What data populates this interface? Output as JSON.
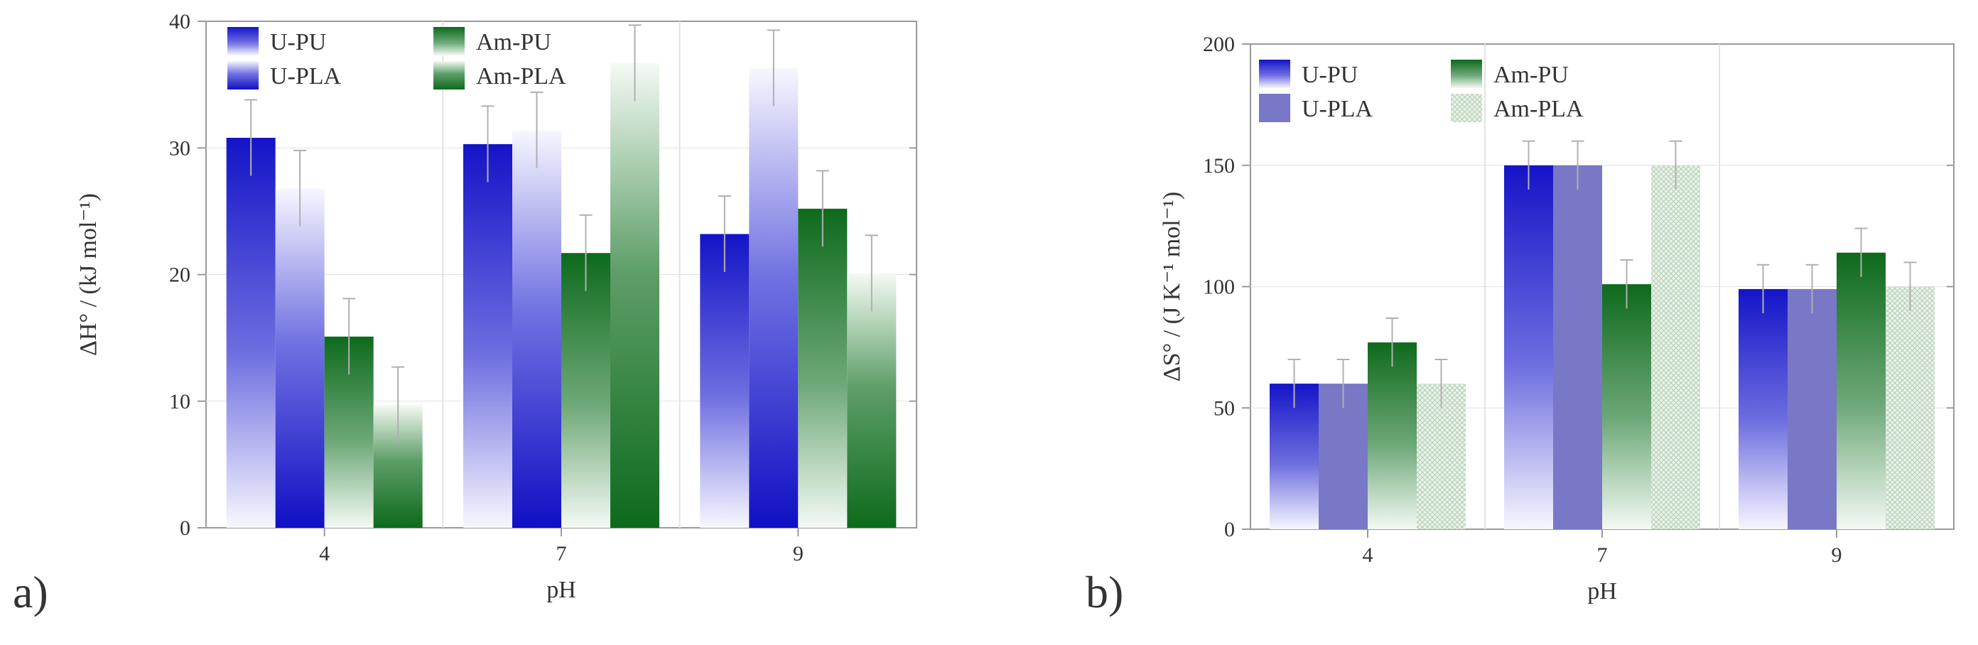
{
  "figure": {
    "panel_labels": [
      "a)",
      "b)"
    ]
  },
  "colors": {
    "blue": "#1414c8",
    "blue_soft": "#7878c6",
    "green": "#0d6a1c",
    "green_soft": "#d6e6d6",
    "axis": "#9a9a9a",
    "grid": "#e2e2e2"
  },
  "chart_data": [
    {
      "panel": "a)",
      "type": "bar",
      "title": "",
      "xlabel": "pH",
      "ylabel": "ΔH° / (kJ mol⁻¹)",
      "categories": [
        "4",
        "7",
        "9"
      ],
      "ylim": [
        0,
        40
      ],
      "yticks": [
        0,
        10,
        20,
        30,
        40
      ],
      "grid": true,
      "legend_position": "top-left",
      "series": [
        {
          "name": "U-PU",
          "values": [
            30.8,
            30.3,
            23.2
          ],
          "errors": [
            3.0,
            3.0,
            3.0
          ],
          "fill": "blue-fade-down"
        },
        {
          "name": "U-PLA",
          "values": [
            26.8,
            31.4,
            36.3
          ],
          "errors": [
            3.0,
            3.0,
            3.0
          ],
          "fill": "blue-fade-up"
        },
        {
          "name": "Am-PU",
          "values": [
            15.1,
            21.7,
            25.2
          ],
          "errors": [
            3.0,
            3.0,
            3.0
          ],
          "fill": "green-fade-down"
        },
        {
          "name": "Am-PLA",
          "values": [
            9.7,
            36.7,
            20.1
          ],
          "errors": [
            3.0,
            3.0,
            3.0
          ],
          "fill": "green-fade-up"
        }
      ]
    },
    {
      "panel": "b)",
      "type": "bar",
      "title": "",
      "xlabel": "pH",
      "ylabel": "ΔS° / (J K⁻¹ mol⁻¹)",
      "categories": [
        "4",
        "7",
        "9"
      ],
      "ylim": [
        0,
        200
      ],
      "yticks": [
        0,
        50,
        100,
        150,
        200
      ],
      "grid": true,
      "legend_position": "top-left",
      "series": [
        {
          "name": "U-PU",
          "values": [
            60,
            150,
            99
          ],
          "errors": [
            10,
            10,
            10
          ],
          "fill": "blue-fade-down"
        },
        {
          "name": "U-PLA",
          "values": [
            60,
            150,
            99
          ],
          "errors": [
            10,
            10,
            10
          ],
          "fill": "blue-solid"
        },
        {
          "name": "Am-PU",
          "values": [
            77,
            101,
            114
          ],
          "errors": [
            10,
            10,
            10
          ],
          "fill": "green-fade-down"
        },
        {
          "name": "Am-PLA",
          "values": [
            60,
            150,
            100
          ],
          "errors": [
            10,
            10,
            10
          ],
          "fill": "green-hatched"
        }
      ]
    }
  ]
}
